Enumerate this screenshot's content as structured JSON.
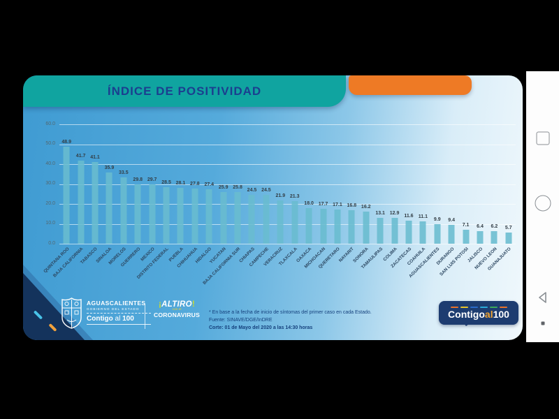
{
  "slide": {
    "title": "ÍNDICE DE POSITIVIDAD"
  },
  "chart_data": {
    "type": "bar",
    "title": "ÍNDICE DE POSITIVIDAD",
    "categories": [
      "QUINTANA ROO",
      "BAJA CALIFORNIA",
      "TABASCO",
      "SINALOA",
      "MORELOS",
      "GUERRERO",
      "MEXICO",
      "DISTRITO FEDERAL",
      "PUEBLA",
      "CHIHUAHUA",
      "HIDALGO",
      "YUCATAN",
      "BAJA CALIFORNIA SUR",
      "CHIAPAS",
      "CAMPECHE",
      "VERACRUZ",
      "TLAXCALA",
      "OAXACA",
      "MICHOACAN",
      "QUERETARO",
      "NAYARIT",
      "SONORA",
      "TAMAULIPAS",
      "COLIMA",
      "ZACATECAS",
      "COAHUILA",
      "AGUASCALIENTES",
      "DURANGO",
      "SAN LUIS POTOSI",
      "JALISCO",
      "NUEVO LEON",
      "GUANAJUATO"
    ],
    "values": [
      48.9,
      41.7,
      41.1,
      35.9,
      33.5,
      29.8,
      29.7,
      28.5,
      28.1,
      27.8,
      27.4,
      25.9,
      25.8,
      24.5,
      24.5,
      21.9,
      21.3,
      18.0,
      17.7,
      17.1,
      16.8,
      16.2,
      13.1,
      12.9,
      11.6,
      11.1,
      9.9,
      9.4,
      7.1,
      6.4,
      6.2,
      5.7
    ],
    "xlabel": "",
    "ylabel": "",
    "ylim": [
      0,
      60
    ],
    "y_ticks": [
      60,
      50,
      40,
      30,
      20,
      10,
      0
    ],
    "grid": true,
    "legend": "none",
    "bar_color": "#69bccf"
  },
  "footer": {
    "gov_logo": {
      "line1": "AGUASCALIENTES",
      "line2": "GOBIERNO DEL ESTADO",
      "contigo": "Contigo",
      "al": "al",
      "num": "100"
    },
    "altiro_logo": {
      "excl_open": "¡",
      "word": "ALTIRO",
      "excl_close": "!",
      "line2": "con el",
      "line3": "CORONAVIRUS"
    },
    "footnote": {
      "line1": "* En base a la fecha de inicio de síntomas del primer caso en cada Estado.",
      "line2": "Fuente: SINAVE/DGE/InDRE",
      "line3": "Corte: 01 de Mayo del 2020 a las 14:30 horas"
    },
    "contigo_badge": {
      "contigo": "Contigo",
      "al": "al",
      "num": "100",
      "dash_colors": [
        "#e8722a",
        "#e8c22a",
        "#2a6ac8",
        "#2aa8d8",
        "#3aa85a",
        "#e8722a"
      ]
    }
  },
  "colors": {
    "title_banner": "#10a4a0",
    "title_text": "#1b3e8f",
    "accent_banner": "#ee7a25",
    "bar": "#69bccf",
    "badge_bg": "#1d3c70"
  }
}
